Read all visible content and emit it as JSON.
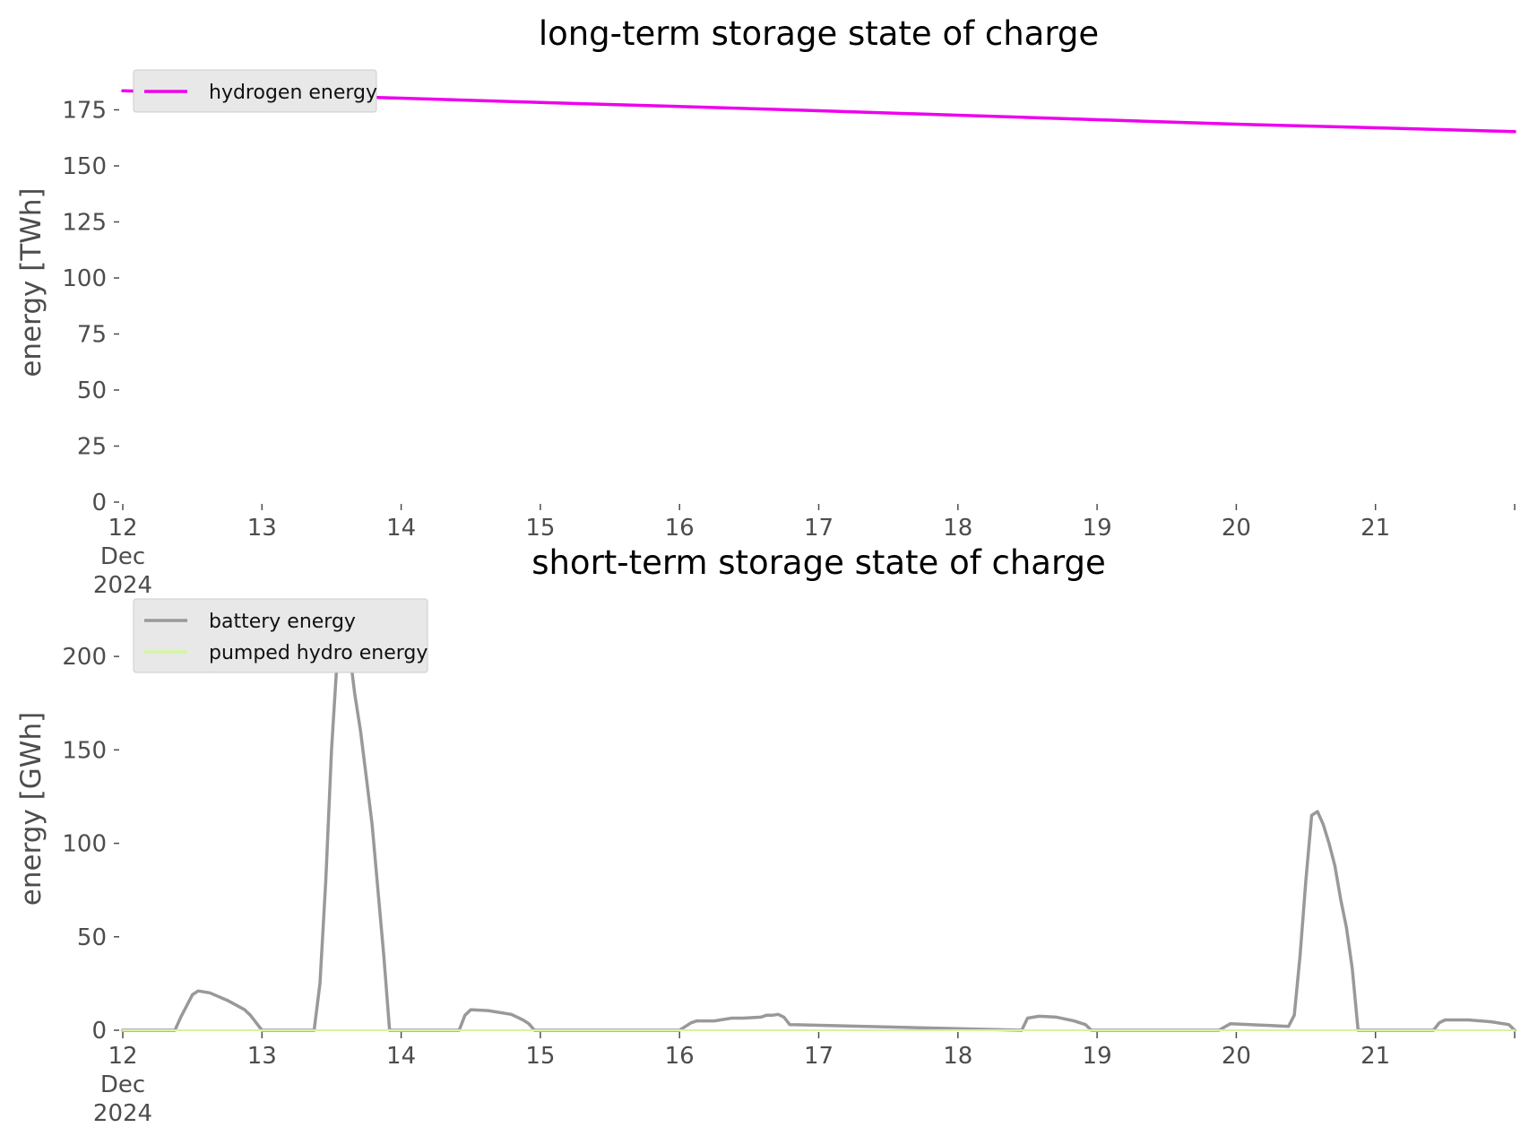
{
  "colors": {
    "hydrogen": "#ee00ee",
    "battery": "#999999",
    "pumped_hydro": "#d4f5a0",
    "legend_bg": "#e8e8e8",
    "legend_border": "#cccccc"
  },
  "chart_data": [
    {
      "type": "line",
      "title": "long-term storage state of charge",
      "xlabel": "",
      "ylabel": "energy [TWh]",
      "xlim": [
        "2024-12-12",
        "2024-12-22"
      ],
      "ylim": [
        0,
        188
      ],
      "yticks": [
        0,
        25,
        50,
        75,
        100,
        125,
        150,
        175
      ],
      "xticks": [
        {
          "x": "2024-12-12",
          "label": "12",
          "sub1": "Dec",
          "sub2": "2024"
        },
        {
          "x": "2024-12-13",
          "label": "13"
        },
        {
          "x": "2024-12-14",
          "label": "14"
        },
        {
          "x": "2024-12-15",
          "label": "15"
        },
        {
          "x": "2024-12-16",
          "label": "16"
        },
        {
          "x": "2024-12-17",
          "label": "17"
        },
        {
          "x": "2024-12-18",
          "label": "18"
        },
        {
          "x": "2024-12-19",
          "label": "19"
        },
        {
          "x": "2024-12-20",
          "label": "20"
        },
        {
          "x": "2024-12-21",
          "label": "21"
        },
        {
          "x": "2024-12-22",
          "label": ""
        }
      ],
      "grid": false,
      "legend_position": "top-left",
      "series": [
        {
          "name": "hydrogen energy",
          "color": "#ee00ee",
          "x": [
            "2024-12-12 00:00",
            "2024-12-13 00:00",
            "2024-12-14 00:00",
            "2024-12-15 00:00",
            "2024-12-16 00:00",
            "2024-12-17 00:00",
            "2024-12-18 00:00",
            "2024-12-19 00:00",
            "2024-12-20 00:00",
            "2024-12-21 00:00",
            "2024-12-22 00:00"
          ],
          "y": [
            183.5,
            182.0,
            180.2,
            178.3,
            176.5,
            174.6,
            172.6,
            170.6,
            168.6,
            167.0,
            165.3
          ]
        }
      ]
    },
    {
      "type": "line",
      "title": "short-term storage state of charge",
      "xlabel": "",
      "ylabel": "energy [GWh]",
      "xlim": [
        "2024-12-12",
        "2024-12-22"
      ],
      "ylim": [
        0,
        225
      ],
      "yticks": [
        0,
        50,
        100,
        150,
        200
      ],
      "xticks": [
        {
          "x": "2024-12-12",
          "label": "12",
          "sub1": "Dec",
          "sub2": "2024"
        },
        {
          "x": "2024-12-13",
          "label": "13"
        },
        {
          "x": "2024-12-14",
          "label": "14"
        },
        {
          "x": "2024-12-15",
          "label": "15"
        },
        {
          "x": "2024-12-16",
          "label": "16"
        },
        {
          "x": "2024-12-17",
          "label": "17"
        },
        {
          "x": "2024-12-18",
          "label": "18"
        },
        {
          "x": "2024-12-19",
          "label": "19"
        },
        {
          "x": "2024-12-20",
          "label": "20"
        },
        {
          "x": "2024-12-21",
          "label": "21"
        },
        {
          "x": "2024-12-22",
          "label": ""
        }
      ],
      "grid": false,
      "legend_position": "top-left",
      "series": [
        {
          "name": "battery energy",
          "color": "#999999",
          "x": [
            "2024-12-12 00:00",
            "2024-12-12 09:00",
            "2024-12-12 10:00",
            "2024-12-12 12:00",
            "2024-12-12 13:00",
            "2024-12-12 15:00",
            "2024-12-12 18:00",
            "2024-12-12 21:00",
            "2024-12-12 22:00",
            "2024-12-13 00:00",
            "2024-12-13 09:00",
            "2024-12-13 10:00",
            "2024-12-13 11:00",
            "2024-12-13 12:00",
            "2024-12-13 13:00",
            "2024-12-13 14:00",
            "2024-12-13 15:00",
            "2024-12-13 16:00",
            "2024-12-13 17:00",
            "2024-12-13 18:00",
            "2024-12-13 19:00",
            "2024-12-13 20:00",
            "2024-12-13 21:00",
            "2024-12-13 22:00",
            "2024-12-13 23:00",
            "2024-12-14 00:00",
            "2024-12-14 10:00",
            "2024-12-14 11:00",
            "2024-12-14 12:00",
            "2024-12-14 15:00",
            "2024-12-14 19:00",
            "2024-12-14 21:00",
            "2024-12-14 22:00",
            "2024-12-14 23:00",
            "2024-12-16 00:00",
            "2024-12-16 02:00",
            "2024-12-16 03:00",
            "2024-12-16 06:00",
            "2024-12-16 09:00",
            "2024-12-16 11:00",
            "2024-12-16 14:00",
            "2024-12-16 15:00",
            "2024-12-16 16:00",
            "2024-12-16 17:00",
            "2024-12-16 18:00",
            "2024-12-16 19:00",
            "2024-12-18 11:00",
            "2024-12-18 12:00",
            "2024-12-18 14:00",
            "2024-12-18 17:00",
            "2024-12-18 20:00",
            "2024-12-18 22:00",
            "2024-12-18 23:00",
            "2024-12-19 21:00",
            "2024-12-19 23:00",
            "2024-12-20 06:00",
            "2024-12-20 09:00",
            "2024-12-20 10:00",
            "2024-12-20 11:00",
            "2024-12-20 12:00",
            "2024-12-20 13:00",
            "2024-12-20 14:00",
            "2024-12-20 15:00",
            "2024-12-20 16:00",
            "2024-12-20 17:00",
            "2024-12-20 18:00",
            "2024-12-20 19:00",
            "2024-12-20 20:00",
            "2024-12-20 21:00",
            "2024-12-20 22:00",
            "2024-12-20 23:00",
            "2024-12-21 10:00",
            "2024-12-21 11:00",
            "2024-12-21 12:00",
            "2024-12-21 16:00",
            "2024-12-21 20:00",
            "2024-12-21 23:00",
            "2024-12-22 00:00"
          ],
          "y": [
            0,
            0,
            7,
            19,
            21,
            20,
            16,
            11,
            8,
            0,
            0,
            25,
            80,
            150,
            200,
            217,
            205,
            180,
            160,
            135,
            110,
            75,
            40,
            0,
            0,
            0,
            0,
            8,
            11,
            10.5,
            8.5,
            5.5,
            3.5,
            0,
            0,
            4,
            5,
            5,
            6.5,
            6.5,
            7,
            8,
            8,
            8.5,
            7,
            3,
            0,
            6.5,
            7.5,
            7,
            5,
            3,
            0,
            0,
            3.5,
            2.5,
            2,
            8,
            40,
            80,
            115,
            117,
            110,
            100,
            88,
            70,
            55,
            33,
            0,
            0,
            0,
            0,
            4,
            5.5,
            5.5,
            4.5,
            3,
            0
          ],
          "x_note": ""
        },
        {
          "name": "pumped hydro energy",
          "color": "#d4f5a0",
          "x": [
            "2024-12-12 00:00",
            "2024-12-22 00:00"
          ],
          "y": [
            0,
            0
          ]
        }
      ]
    }
  ]
}
